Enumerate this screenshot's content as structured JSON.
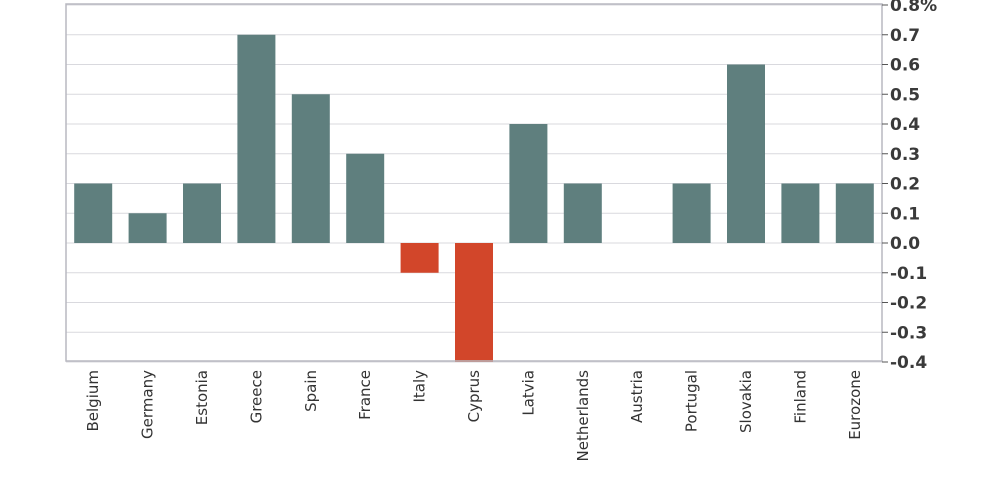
{
  "chart_data": {
    "type": "bar",
    "categories": [
      "Belgium",
      "Germany",
      "Estonia",
      "Greece",
      "Spain",
      "France",
      "Italy",
      "Cyprus",
      "Latvia",
      "Netherlands",
      "Austria",
      "Portugal",
      "Slovakia",
      "Finland",
      "Eurozone"
    ],
    "values": [
      0.2,
      0.1,
      0.2,
      0.7,
      0.5,
      0.3,
      -0.1,
      -0.4,
      0.4,
      0.2,
      0.0,
      0.2,
      0.6,
      0.2,
      0.2
    ],
    "title": "",
    "xlabel": "",
    "ylabel": "",
    "ylim": [
      -0.4,
      0.8
    ],
    "yticks": [
      "0.8%",
      "0.7",
      "0.6",
      "0.5",
      "0.4",
      "0.3",
      "0.2",
      "0.1",
      "0.0",
      "-0.1",
      "-0.2",
      "-0.3",
      "-0.4"
    ],
    "grid": true,
    "colors": {
      "positive": "#5f7f7e",
      "negative": "#d2462a"
    }
  }
}
